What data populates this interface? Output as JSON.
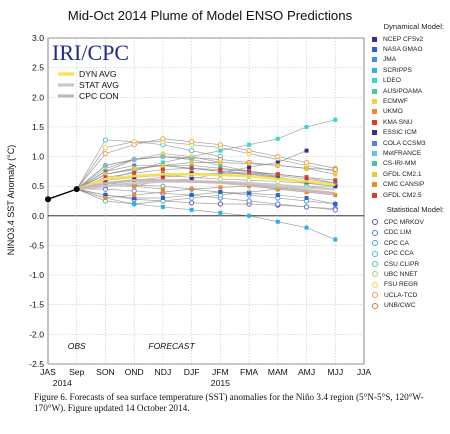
{
  "chart_data": {
    "type": "line",
    "title": "Mid-Oct 2014 Plume of Model ENSO Predictions",
    "ylabel": "NINO3.4 SST Anomaly (°C)",
    "ylim": [
      -2.5,
      3.0
    ],
    "yticks": [
      "-2.5",
      "-2.0",
      "-1.5",
      "-1.0",
      "-0.5",
      "0.0",
      "0.5",
      "1.0",
      "1.5",
      "2.0",
      "2.5",
      "3.0"
    ],
    "ytick_values": [
      -2.5,
      -2.0,
      -1.5,
      -1.0,
      -0.5,
      0.0,
      0.5,
      1.0,
      1.5,
      2.0,
      2.5,
      3.0
    ],
    "categories": [
      "JAS",
      "Sep",
      "SON",
      "OND",
      "NDJ",
      "DJF",
      "JFM",
      "FMA",
      "MAM",
      "AMJ",
      "MJJ",
      "JJA"
    ],
    "year_labels": [
      {
        "text": "2014",
        "at": 0.5
      },
      {
        "text": "2015",
        "at": 6
      }
    ],
    "region_labels": [
      {
        "text": "OBS",
        "at": 1
      },
      {
        "text": "FORECAST",
        "at": 4.3
      }
    ],
    "grid": true,
    "banner": "IRI/CPC",
    "observed": {
      "x": [
        0,
        1
      ],
      "values": [
        0.28,
        0.45
      ],
      "color": "#000000"
    },
    "averages": [
      {
        "name": "DYN AVG",
        "color": "#f7e34f",
        "values": [
          0.45,
          0.62,
          0.67,
          0.7,
          0.7,
          0.69,
          0.67,
          0.62,
          0.58,
          0.52
        ]
      },
      {
        "name": "STAT AVG",
        "color": "#c8c8c8",
        "values": [
          0.45,
          0.5,
          0.55,
          0.58,
          0.58,
          0.57,
          0.55,
          0.52,
          0.48,
          0.45
        ]
      },
      {
        "name": "CPC CON",
        "color": "#c9b6b3",
        "values": [
          0.45,
          0.55,
          0.6,
          0.6,
          0.58,
          0.56,
          0.52,
          0.48,
          0.43,
          0.38
        ]
      }
    ],
    "legend_headers": {
      "dynamical": "Dynamical Model:",
      "statistical": "Statistical Model:"
    },
    "dynamical_models": [
      {
        "name": "NCEP CFSv2",
        "color": "#3b2d8f",
        "values": [
          0.45,
          0.5,
          0.5,
          0.6,
          0.62,
          0.72,
          0.82,
          0.9,
          1.1
        ]
      },
      {
        "name": "NASA GMAO",
        "color": "#2b5fd6",
        "values": [
          0.45,
          0.35,
          0.3,
          0.3,
          0.35,
          0.4,
          0.38,
          0.35,
          0.3,
          0.2
        ]
      },
      {
        "name": "JMA",
        "color": "#3f8ff0",
        "values": [
          0.45,
          0.7,
          0.78,
          0.85,
          0.8,
          0.75,
          0.7,
          0.65
        ]
      },
      {
        "name": "SCRIPPS",
        "color": "#26b3e6",
        "values": [
          0.45,
          0.3,
          0.2,
          0.15,
          0.1,
          0.05,
          0.0,
          -0.1,
          -0.2,
          -0.4
        ]
      },
      {
        "name": "LDEO",
        "color": "#35d8cc",
        "values": [
          0.45,
          0.6,
          0.75,
          0.9,
          1.0,
          1.1,
          1.2,
          1.3,
          1.5,
          1.62
        ]
      },
      {
        "name": "AUS/POAMA",
        "color": "#4cc99a",
        "values": [
          0.45,
          0.75,
          0.95,
          1.0,
          0.95,
          0.85,
          0.75,
          0.65,
          0.55,
          0.5
        ]
      },
      {
        "name": "ECMWF",
        "color": "#f4d43a",
        "values": [
          0.45,
          0.8,
          0.95,
          1.05,
          1.0,
          0.9
        ]
      },
      {
        "name": "UKMO",
        "color": "#f08a2a",
        "values": [
          0.45,
          0.55,
          0.5,
          0.45
        ]
      },
      {
        "name": "KMA SNU",
        "color": "#e13a2b",
        "values": [
          0.45,
          0.55,
          0.6,
          0.65,
          0.7,
          0.72,
          0.7,
          0.68,
          0.62,
          0.55
        ]
      },
      {
        "name": "ESSIC ICM",
        "color": "#3b2d8f",
        "values": [
          0.45,
          0.6,
          0.65,
          0.7,
          0.72,
          0.7,
          0.68,
          0.65,
          0.58,
          0.5
        ]
      },
      {
        "name": "COLA CCSM3",
        "color": "#5a7de0",
        "values": [
          0.45,
          0.75,
          0.85,
          0.85,
          0.8,
          0.75,
          0.72,
          0.7,
          0.65,
          0.55
        ]
      },
      {
        "name": "MetFRANCE",
        "color": "#62c4e8",
        "values": [
          0.45,
          0.85,
          0.95,
          1.0,
          0.95
        ]
      },
      {
        "name": "CS-IRI-MM",
        "color": "#49c0a8",
        "values": [
          0.45,
          0.7,
          0.8,
          0.85,
          0.85,
          0.8,
          0.75,
          0.7,
          0.65
        ]
      },
      {
        "name": "GFDL CM2.1",
        "color": "#eac93a",
        "values": [
          0.45,
          0.7,
          0.8,
          0.85,
          0.9,
          0.9,
          0.88,
          0.85,
          0.8,
          0.7
        ]
      },
      {
        "name": "CMC CANSIP",
        "color": "#f0892a",
        "values": [
          0.45,
          0.3,
          0.35,
          0.4,
          0.45,
          0.48,
          0.5,
          0.45,
          0.4,
          0.35
        ]
      },
      {
        "name": "GFDL CM2.5",
        "color": "#e23b2b",
        "values": [
          0.45,
          0.65,
          0.72,
          0.78,
          0.8,
          0.78,
          0.75,
          0.7,
          0.65,
          0.6
        ]
      }
    ],
    "statistical_models": [
      {
        "name": "CPC MRKOV",
        "color": "#6a4fb0",
        "values": [
          0.45,
          0.35,
          0.28,
          0.25,
          0.22,
          0.2,
          0.2,
          0.18,
          0.15,
          0.12
        ]
      },
      {
        "name": "CDC LIM",
        "color": "#5a7de0",
        "values": [
          0.45,
          0.45,
          0.42,
          0.38,
          0.35,
          0.3,
          0.25,
          0.2,
          0.15,
          0.1
        ]
      },
      {
        "name": "CPC CA",
        "color": "#4aa8e8",
        "values": [
          0.45,
          0.55,
          0.52,
          0.5,
          0.45,
          0.4,
          0.35,
          0.3,
          0.25,
          0.2
        ]
      },
      {
        "name": "CPC CCA",
        "color": "#3fc1d8",
        "values": [
          0.45,
          1.28,
          1.25,
          1.2,
          1.1,
          1.0
        ]
      },
      {
        "name": "CSU CLIPR",
        "color": "#4cc99a",
        "values": [
          0.45,
          0.25,
          0.2,
          0.25,
          0.3,
          0.35,
          0.4,
          0.45,
          0.5,
          0.5
        ]
      },
      {
        "name": "UBC NNET",
        "color": "#a8d36a",
        "values": [
          0.45,
          0.6,
          0.65,
          0.68,
          0.65,
          0.62,
          0.6,
          0.58,
          0.55,
          0.52
        ]
      },
      {
        "name": "FSU REGR",
        "color": "#f4d43a",
        "values": [
          0.45,
          1.15,
          1.25,
          1.25,
          1.2,
          1.15,
          1.05,
          0.95,
          0.85,
          0.75
        ]
      },
      {
        "name": "UCLA-TCD",
        "color": "#f0a050",
        "values": [
          0.45,
          1.05,
          1.2,
          1.3,
          1.25,
          1.2,
          1.1,
          1.0,
          0.9,
          0.8
        ]
      },
      {
        "name": "UNB/CWC",
        "color": "#e07a30",
        "values": [
          0.45,
          0.85,
          0.95,
          1.0,
          0.98,
          0.95,
          0.9,
          0.85,
          0.8,
          0.78
        ]
      }
    ]
  },
  "caption": "Figure 6. Forecasts of sea surface temperature (SST) anomalies for the Niño 3.4 region (5°N-5°S, 120°W-170°W).  Figure updated 14 October 2014."
}
